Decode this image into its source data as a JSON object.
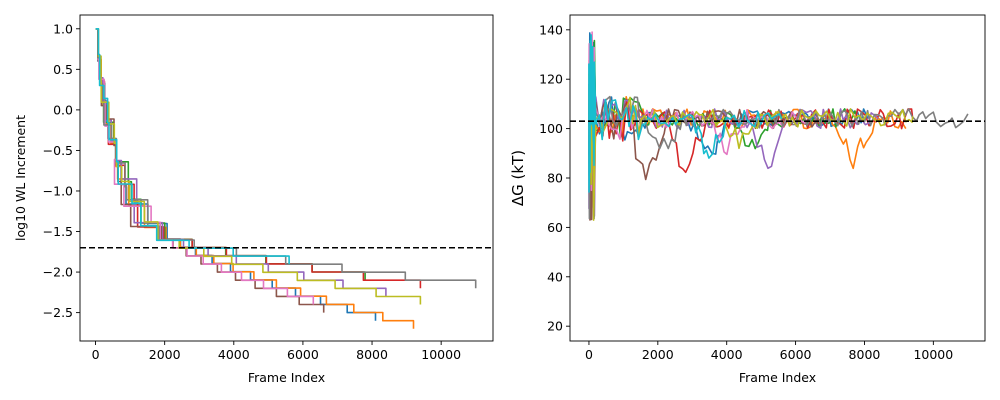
{
  "chart_data": [
    {
      "type": "line",
      "title": "",
      "xlabel": "Frame Index",
      "ylabel": "log10 WL Increment",
      "xlim": [
        -450,
        11500
      ],
      "ylim": [
        -2.85,
        1.17
      ],
      "xticks": [
        "0",
        "2000",
        "4000",
        "6000",
        "8000",
        "10000"
      ],
      "yticks": [
        "1.0",
        "0.5",
        "0.0",
        "−0.5",
        "−1.0",
        "−1.5",
        "−2.0",
        "−2.5"
      ],
      "reference_line": {
        "y": -1.7,
        "style": "dashed",
        "color": "#000000"
      },
      "grid": false,
      "legend": "none",
      "series_colors": [
        "#1f77b4",
        "#ff7f0e",
        "#2ca02c",
        "#d62728",
        "#9467bd",
        "#8c564b",
        "#e377c2",
        "#7f7f7f",
        "#bcbd22",
        "#17becf"
      ],
      "series": [
        {
          "end_x": 8100,
          "final": -2.6
        },
        {
          "end_x": 9200,
          "final": -2.7
        },
        {
          "end_x": 7800,
          "final": -2.1
        },
        {
          "end_x": 9400,
          "final": -2.2
        },
        {
          "end_x": 8400,
          "final": -2.3
        },
        {
          "end_x": 6600,
          "final": -2.5
        },
        {
          "end_x": 6300,
          "final": -2.4
        },
        {
          "end_x": 11000,
          "final": -2.2
        },
        {
          "end_x": 9400,
          "final": -2.4
        },
        {
          "end_x": 5600,
          "final": -1.9
        }
      ]
    },
    {
      "type": "line",
      "title": "",
      "xlabel": "Frame Index",
      "ylabel": "ΔG (kT)",
      "xlim": [
        -550,
        11500
      ],
      "ylim": [
        14,
        146
      ],
      "xticks": [
        "0",
        "2000",
        "4000",
        "6000",
        "8000",
        "10000"
      ],
      "yticks": [
        "20",
        "40",
        "60",
        "80",
        "100",
        "120",
        "140"
      ],
      "reference_line": {
        "y": 103,
        "style": "dashed",
        "color": "#000000"
      },
      "grid": false,
      "legend": "none",
      "series_colors": [
        "#1f77b4",
        "#ff7f0e",
        "#2ca02c",
        "#d62728",
        "#9467bd",
        "#8c564b",
        "#e377c2",
        "#7f7f7f",
        "#bcbd22",
        "#17becf"
      ],
      "series": [
        {
          "end_x": 8100,
          "final": 104,
          "dip_x": 3500,
          "dip_y": 88
        },
        {
          "end_x": 9200,
          "final": 100,
          "dip_x": 7700,
          "dip_y": 86
        },
        {
          "end_x": 7800,
          "final": 104,
          "dip_x": 4700,
          "dip_y": 92
        },
        {
          "end_x": 9400,
          "final": 104,
          "dip_x": 2800,
          "dip_y": 80
        },
        {
          "end_x": 8400,
          "final": 104,
          "dip_x": 5200,
          "dip_y": 83
        },
        {
          "end_x": 6600,
          "final": 102,
          "dip_x": 1700,
          "dip_y": 79
        },
        {
          "end_x": 6300,
          "final": 104,
          "dip_x": 4000,
          "dip_y": 91
        },
        {
          "end_x": 11000,
          "final": 106,
          "dip_x": 2200,
          "dip_y": 92
        },
        {
          "end_x": 9400,
          "final": 105,
          "dip_x": 4400,
          "dip_y": 93
        },
        {
          "end_x": 5600,
          "final": 104,
          "dip_x": 3500,
          "dip_y": 88
        }
      ]
    }
  ]
}
